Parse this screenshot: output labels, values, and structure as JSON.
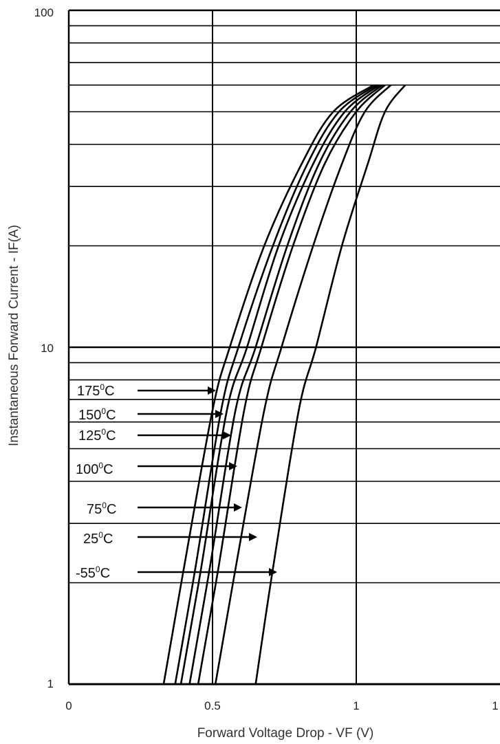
{
  "chart_data": {
    "type": "line",
    "xlabel": "Forward Voltage Drop - VF (V)",
    "ylabel": "Instantaneous Forward Current - IF(A)",
    "x_scale": "linear",
    "y_scale": "log",
    "xlim": [
      0,
      1.5
    ],
    "ylim": [
      1,
      100
    ],
    "x_tick_labels": [
      "0",
      "0.5",
      "1",
      "1"
    ],
    "y_tick_labels": [
      "1",
      "10",
      "100"
    ],
    "grid": true,
    "series": [
      {
        "name": "175",
        "points": [
          [
            0.33,
            1
          ],
          [
            0.4,
            2.2
          ],
          [
            0.5,
            6.5
          ],
          [
            0.56,
            10
          ],
          [
            0.68,
            20
          ],
          [
            0.81,
            35
          ],
          [
            0.92,
            50
          ],
          [
            1.06,
            60
          ]
        ]
      },
      {
        "name": "150",
        "points": [
          [
            0.37,
            1
          ],
          [
            0.44,
            2.2
          ],
          [
            0.53,
            6.5
          ],
          [
            0.59,
            10
          ],
          [
            0.71,
            20
          ],
          [
            0.83,
            35
          ],
          [
            0.94,
            50
          ],
          [
            1.07,
            60
          ]
        ]
      },
      {
        "name": "125",
        "points": [
          [
            0.39,
            1
          ],
          [
            0.46,
            2.2
          ],
          [
            0.55,
            6.5
          ],
          [
            0.62,
            10
          ],
          [
            0.73,
            20
          ],
          [
            0.85,
            35
          ],
          [
            0.96,
            50
          ],
          [
            1.08,
            60
          ]
        ]
      },
      {
        "name": "100",
        "points": [
          [
            0.42,
            1
          ],
          [
            0.49,
            2.2
          ],
          [
            0.58,
            6.5
          ],
          [
            0.65,
            10
          ],
          [
            0.76,
            20
          ],
          [
            0.87,
            35
          ],
          [
            0.98,
            50
          ],
          [
            1.09,
            60
          ]
        ]
      },
      {
        "name": "75",
        "points": [
          [
            0.45,
            1
          ],
          [
            0.52,
            2.2
          ],
          [
            0.61,
            6.5
          ],
          [
            0.67,
            10
          ],
          [
            0.78,
            20
          ],
          [
            0.89,
            35
          ],
          [
            1.0,
            50
          ],
          [
            1.1,
            60
          ]
        ]
      },
      {
        "name": "25",
        "points": [
          [
            0.51,
            1
          ],
          [
            0.58,
            2.2
          ],
          [
            0.68,
            6.5
          ],
          [
            0.74,
            10
          ],
          [
            0.85,
            20
          ],
          [
            0.95,
            35
          ],
          [
            1.03,
            50
          ],
          [
            1.12,
            60
          ]
        ]
      },
      {
        "name": "-55",
        "points": [
          [
            0.65,
            1
          ],
          [
            0.71,
            2.2
          ],
          [
            0.8,
            6.5
          ],
          [
            0.86,
            10
          ],
          [
            0.95,
            20
          ],
          [
            1.04,
            35
          ],
          [
            1.1,
            50
          ],
          [
            1.17,
            60
          ]
        ]
      }
    ],
    "annotations": [
      {
        "text": "175",
        "unit": "0C",
        "series": "175"
      },
      {
        "text": "150",
        "unit": "0C",
        "series": "150"
      },
      {
        "text": "125",
        "unit": "0C",
        "series": "125"
      },
      {
        "text": "100",
        "unit": "0C",
        "series": "100"
      },
      {
        "text": "75",
        "unit": "0C",
        "series": "75"
      },
      {
        "text": "25",
        "unit": "0C",
        "series": "25"
      },
      {
        "text": "-55",
        "unit": "0C",
        "series": "-55"
      }
    ],
    "colors": {
      "line": "#000000",
      "grid": "#000000",
      "text": "#222222"
    }
  }
}
